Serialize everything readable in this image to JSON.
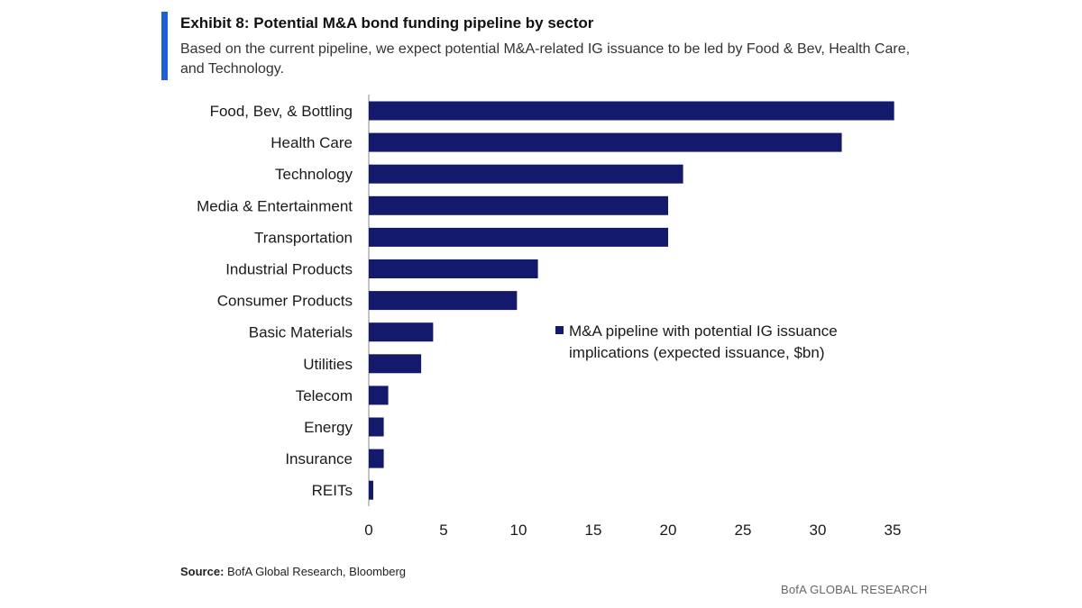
{
  "header": {
    "title": "Exhibit 8: Potential M&A bond funding pipeline by sector",
    "subtitle": "Based on the current pipeline, we expect potential M&A-related IG issuance to be led by Food & Bev, Health Care, and Technology."
  },
  "footer": {
    "source_label": "Source:",
    "source_text": "BofA Global Research, Bloomberg",
    "brand": "BofA GLOBAL RESEARCH"
  },
  "colors": {
    "bar": "#141a6b",
    "accent": "#1f5fd6"
  },
  "chart_data": {
    "type": "bar",
    "orientation": "horizontal",
    "categories": [
      "Food, Bev, & Bottling",
      "Health Care",
      "Technology",
      "Media & Entertainment",
      "Transportation",
      "Industrial Products",
      "Consumer Products",
      "Basic Materials",
      "Utilities",
      "Telecom",
      "Energy",
      "Insurance",
      "REITs"
    ],
    "series": [
      {
        "name": "M&A pipeline with potential IG issuance implications (expected issuance, $bn)",
        "values": [
          35.1,
          31.6,
          21.0,
          20.0,
          20.0,
          11.3,
          9.9,
          4.3,
          3.5,
          1.3,
          1.0,
          1.0,
          0.3
        ]
      }
    ],
    "xlim": [
      0,
      35
    ],
    "xticks": [
      0,
      5,
      10,
      15,
      20,
      25,
      30,
      35
    ],
    "grid": false,
    "legend": "right-middle"
  }
}
